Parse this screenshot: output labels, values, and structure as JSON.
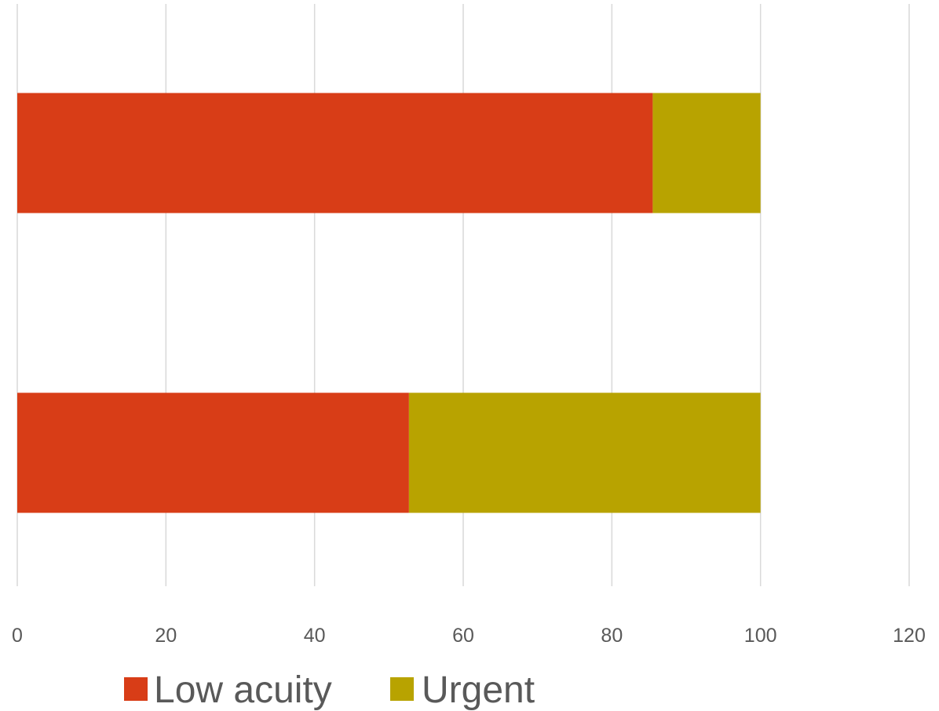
{
  "chart_data": {
    "type": "bar",
    "orientation": "horizontal",
    "stacked": true,
    "categories": [
      "",
      ""
    ],
    "series": [
      {
        "name": "Low acuity",
        "values": [
          85.5,
          52.7
        ],
        "color": "#d83d17"
      },
      {
        "name": "Urgent",
        "values": [
          14.5,
          47.3
        ],
        "color": "#b8a300"
      }
    ],
    "xlim": [
      0,
      120
    ],
    "x_ticks": [
      "0",
      "20",
      "40",
      "60",
      "80",
      "100",
      "120"
    ],
    "grid": true,
    "legend_position": "bottom"
  }
}
